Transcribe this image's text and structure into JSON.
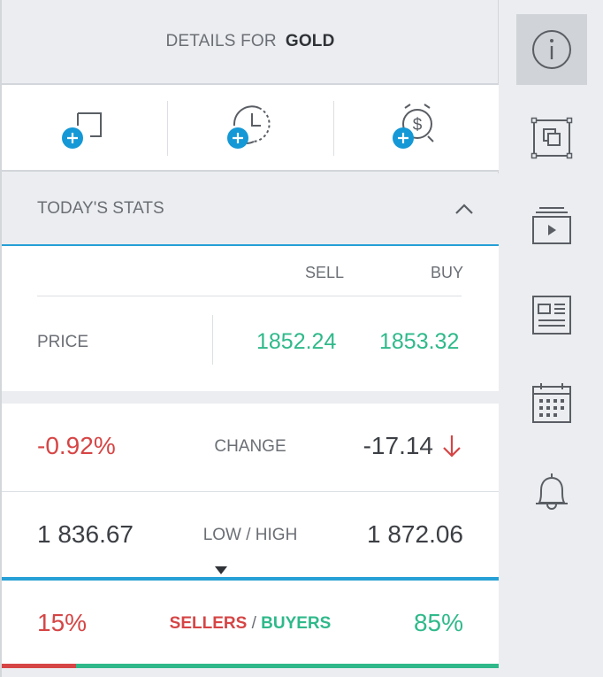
{
  "header": {
    "label": "DETAILS FOR",
    "symbol": "GOLD"
  },
  "actions": [
    {
      "name": "add-to-watchlist"
    },
    {
      "name": "add-pending-order"
    },
    {
      "name": "add-price-alert"
    }
  ],
  "stats": {
    "title": "TODAY'S STATS",
    "sell_header": "SELL",
    "buy_header": "BUY",
    "price_label": "PRICE",
    "sell_price": "1852.24",
    "buy_price": "1853.32",
    "change_percent": "-0.92%",
    "change_label": "CHANGE",
    "change_value": "-17.14",
    "low": "1 836.67",
    "low_high_label": "LOW / HIGH",
    "high": "1 872.06",
    "sellers_percent": "15%",
    "sellers_label": "SELLERS",
    "separator": "/",
    "buyers_label": "BUYERS",
    "buyers_percent": "85%",
    "sellers_fraction": 0.15,
    "buyers_fraction": 0.85
  },
  "colors": {
    "green": "#2fb98a",
    "red": "#d64545",
    "accent": "#26a0d6"
  },
  "sidebar": [
    {
      "icon": "info-icon",
      "active": true
    },
    {
      "icon": "overlay-icon",
      "active": false
    },
    {
      "icon": "video-icon",
      "active": false
    },
    {
      "icon": "news-icon",
      "active": false
    },
    {
      "icon": "calendar-icon",
      "active": false
    },
    {
      "icon": "bell-icon",
      "active": false
    }
  ]
}
